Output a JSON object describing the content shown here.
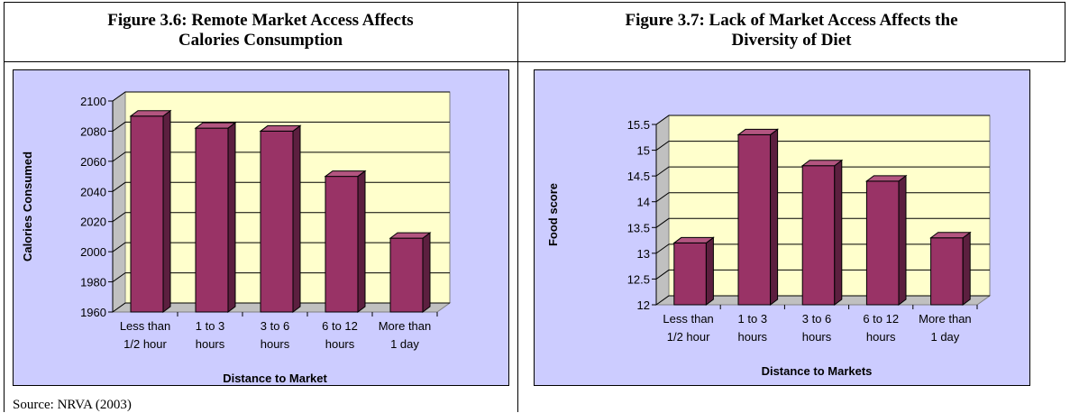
{
  "figures": [
    {
      "title_line1": "Figure 3.6: Remote Market Access Affects",
      "title_line2": "Calories Consumption"
    },
    {
      "title_line1": "Figure 3.7: Lack of Market Access Affects the",
      "title_line2": "Diversity of Diet"
    }
  ],
  "source": "Source: NRVA (2003)",
  "colors": {
    "chart_background": "#ccccff",
    "plot_background": "#ffffcc",
    "bar_front": "#993366",
    "bar_side": "#5c1f3f",
    "bar_top": "#b35580"
  },
  "chart_data": [
    {
      "type": "bar",
      "categories": [
        "Less than 1/2 hour",
        "1 to 3 hours",
        "3 to 6 hours",
        "6 to 12 hours",
        "More than 1 day"
      ],
      "category_lines": [
        [
          "Less than",
          "1/2 hour"
        ],
        [
          "1 to 3",
          "hours"
        ],
        [
          "3 to 6",
          "hours"
        ],
        [
          "6 to 12",
          "hours"
        ],
        [
          "More than",
          "1 day"
        ]
      ],
      "values": [
        2090,
        2082,
        2080,
        2050,
        2009
      ],
      "ylim": [
        1960,
        2100
      ],
      "yticks": [
        "1960",
        "1980",
        "2000",
        "2020",
        "2040",
        "2060",
        "2080",
        "2100"
      ],
      "xlabel": "Distance to Market",
      "ylabel": "Calories Consumed",
      "grid": true
    },
    {
      "type": "bar",
      "categories": [
        "Less than 1/2 hour",
        "1 to 3 hours",
        "3 to 6 hours",
        "6 to 12 hours",
        "More than 1 day"
      ],
      "category_lines": [
        [
          "Less than",
          "1/2 hour"
        ],
        [
          "1 to 3",
          "hours"
        ],
        [
          "3 to 6",
          "hours"
        ],
        [
          "6 to 12",
          "hours"
        ],
        [
          "More than",
          "1 day"
        ]
      ],
      "values": [
        13.2,
        15.3,
        14.7,
        14.4,
        13.3
      ],
      "ylim": [
        12,
        15.5
      ],
      "yticks": [
        "12",
        "12.5",
        "13",
        "13.5",
        "14",
        "14.5",
        "15",
        "15.5"
      ],
      "xlabel": "Distance to Markets",
      "ylabel": "Food score",
      "grid": true
    }
  ]
}
